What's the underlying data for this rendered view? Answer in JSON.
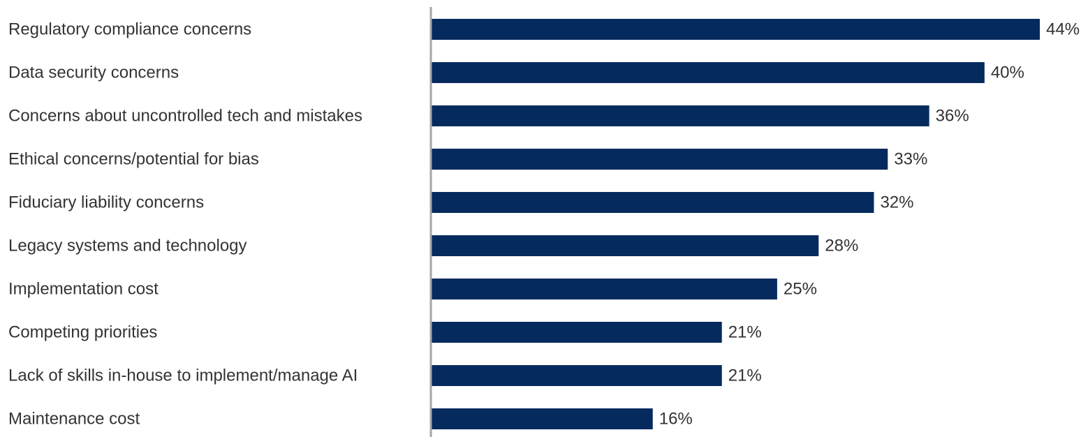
{
  "chart_data": {
    "type": "bar",
    "orientation": "horizontal",
    "categories": [
      "Regulatory compliance concerns",
      "Data security concerns",
      "Concerns about uncontrolled tech and mistakes",
      "Ethical concerns/potential for bias",
      "Fiduciary liability concerns",
      "Legacy systems and technology",
      "Implementation cost",
      "Competing priorities",
      "Lack of skills in-house to implement/manage AI",
      "Maintenance cost"
    ],
    "values": [
      44,
      40,
      36,
      33,
      32,
      28,
      25,
      21,
      21,
      16
    ],
    "value_labels": [
      "44%",
      "40%",
      "36%",
      "33%",
      "32%",
      "28%",
      "25%",
      "21%",
      "21%",
      "16%"
    ],
    "title": "",
    "xlabel": "",
    "ylabel": "",
    "xlim": [
      0,
      44
    ],
    "grid": false,
    "legend": "none",
    "bar_color": "#052a5e",
    "axis_color": "#a6a6a6",
    "text_color": "#333333"
  }
}
